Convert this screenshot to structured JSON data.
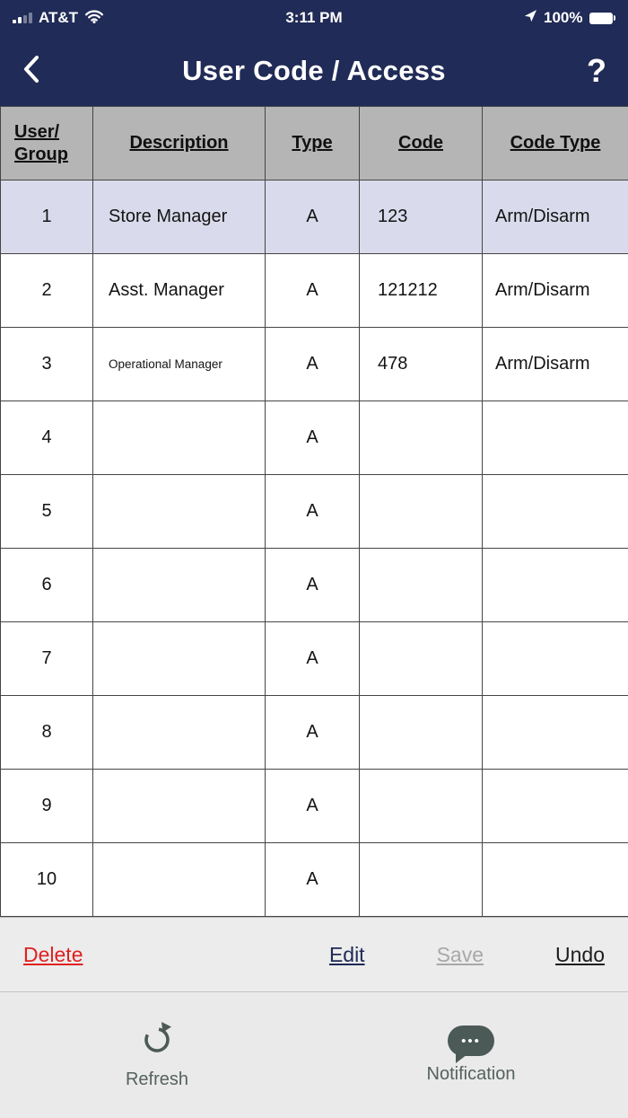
{
  "status_bar": {
    "carrier": "AT&T",
    "time": "3:11 PM",
    "battery_percent": "100%"
  },
  "nav": {
    "title": "User Code / Access",
    "help_label": "?"
  },
  "table": {
    "headers": [
      "User/\nGroup",
      "Description",
      "Type",
      "Code",
      "Code Type"
    ],
    "rows": [
      {
        "user_group": "1",
        "description": "Store Manager",
        "type": "A",
        "code": "123",
        "code_type": "Arm/Disarm",
        "selected": true
      },
      {
        "user_group": "2",
        "description": "Asst. Manager",
        "type": "A",
        "code": "121212",
        "code_type": "Arm/Disarm",
        "selected": false
      },
      {
        "user_group": "3",
        "description": "Operational Manager",
        "type": "A",
        "code": "478",
        "code_type": "Arm/Disarm",
        "selected": false
      },
      {
        "user_group": "4",
        "description": "",
        "type": "A",
        "code": "",
        "code_type": "",
        "selected": false
      },
      {
        "user_group": "5",
        "description": "",
        "type": "A",
        "code": "",
        "code_type": "",
        "selected": false
      },
      {
        "user_group": "6",
        "description": "",
        "type": "A",
        "code": "",
        "code_type": "",
        "selected": false
      },
      {
        "user_group": "7",
        "description": "",
        "type": "A",
        "code": "",
        "code_type": "",
        "selected": false
      },
      {
        "user_group": "8",
        "description": "",
        "type": "A",
        "code": "",
        "code_type": "",
        "selected": false
      },
      {
        "user_group": "9",
        "description": "",
        "type": "A",
        "code": "",
        "code_type": "",
        "selected": false
      },
      {
        "user_group": "10",
        "description": "",
        "type": "A",
        "code": "",
        "code_type": "",
        "selected": false
      }
    ]
  },
  "edit_toolbar": {
    "delete_label": "Delete",
    "edit_label": "Edit",
    "save_label": "Save",
    "undo_label": "Undo"
  },
  "bottom_toolbar": {
    "refresh_label": "Refresh",
    "notification_label": "Notification",
    "ellipsis": "•••"
  },
  "colors": {
    "navy": "#202b57",
    "header_gray": "#b5b5b5",
    "selected_row": "#d9daeb",
    "delete_red": "#e02020",
    "icon_teal": "#4c5a57"
  }
}
